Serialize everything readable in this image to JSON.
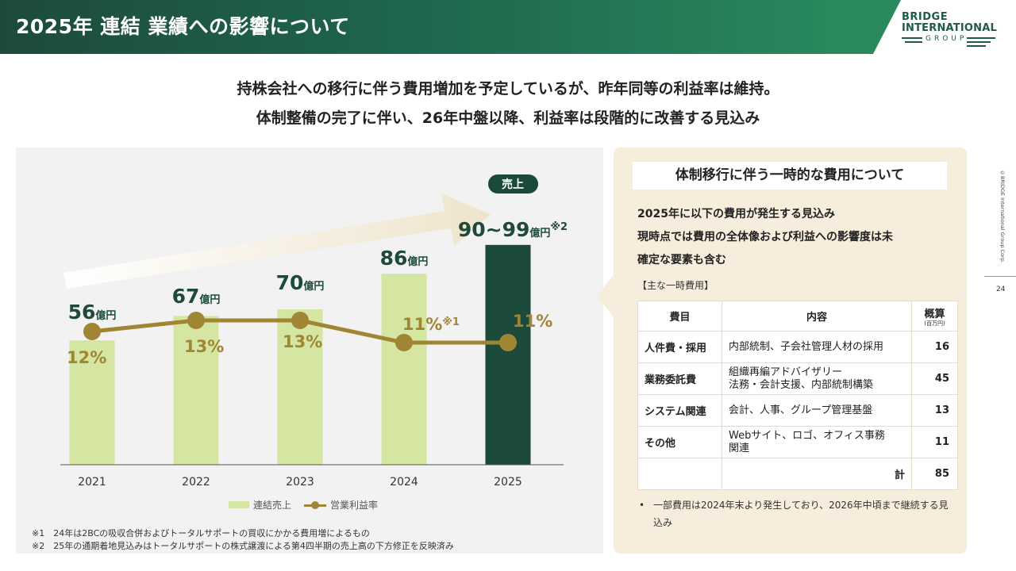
{
  "header": {
    "title": "2025年 連結 業績への影響について",
    "logo_line1": "BRIDGE",
    "logo_line2": "INTERNATIONAL",
    "logo_line3": "GROUP"
  },
  "headline": {
    "line1": "持株会社への移行に伴う費用増加を予定しているが、昨年同等の利益率は維持。",
    "line2": "体制整備の完了に伴い、26年中盤以降、利益率は段階的に改善する見込み"
  },
  "chart": {
    "badge": "売上",
    "unit": "億円",
    "final_value": "90~99",
    "final_note": "※2",
    "pct_note": "※1",
    "legend": {
      "bar": "連結売上",
      "line": "営業利益率"
    },
    "footnotes": [
      "※1　24年は2BCの吸収合併およびトータルサポートの買収にかかる費用増によるもの",
      "※2　25年の通期着地見込みはトータルサポートの株式譲渡による第4四半期の売上高の下方修正を反映済み"
    ]
  },
  "chart_data": {
    "type": "bar",
    "categories": [
      "2021",
      "2022",
      "2023",
      "2024",
      "2025"
    ],
    "series": [
      {
        "name": "連結売上",
        "type": "bar",
        "values": [
          56,
          67,
          70,
          86,
          99
        ],
        "range_2025": [
          90,
          99
        ],
        "unit": "億円",
        "colors": [
          "#d4e6a2",
          "#d4e6a2",
          "#d4e6a2",
          "#d4e6a2",
          "#1b4a3a"
        ]
      },
      {
        "name": "営業利益率",
        "type": "line",
        "values": [
          12,
          13,
          13,
          11,
          11
        ],
        "unit": "%",
        "color": "#a08534"
      }
    ],
    "labels": [
      "56",
      "67",
      "70",
      "86",
      "90~99"
    ],
    "title": "",
    "xlabel": "",
    "ylabel": ""
  },
  "panel": {
    "title": "体制移行に伴う一時的な費用について",
    "desc1": "2025年に以下の費用が発生する見込み",
    "desc2": "現時点では費用の全体像および利益への影響度は未",
    "desc3": "確定な要素も含む",
    "cost_label": "【主な一時費用】",
    "table": {
      "headers": [
        "費目",
        "内容",
        "概算"
      ],
      "header_sub": "(百万円)",
      "rows": [
        {
          "category": "人件費・採用",
          "content": "内部統制、子会社管理人材の採用",
          "content2": "",
          "amount": "16"
        },
        {
          "category": "業務委託費",
          "content": "組織再編アドバイザリー",
          "content2": "法務・会計支援、内部統制構築",
          "amount": "45"
        },
        {
          "category": "システム関連",
          "content": "会計、人事、グループ管理基盤",
          "content2": "",
          "amount": "13"
        },
        {
          "category": "その他",
          "content": "Webサイト、ロゴ、オフィス事務",
          "content2": "関連",
          "amount": "11"
        }
      ],
      "total_label": "計",
      "total_amount": "85"
    },
    "bullet": "一部費用は2024年末より発生しており、2026年中頃まで継続する見込み"
  },
  "side": {
    "copyright": "©BRIDGE International Group Corp.",
    "page_number": "24"
  },
  "colors": {
    "header_green": "#1f6b4f",
    "bar_light": "#d4e6a2",
    "bar_dark": "#1b4a3a",
    "line_gold": "#a08534",
    "panel_beige": "#f6eddc"
  }
}
